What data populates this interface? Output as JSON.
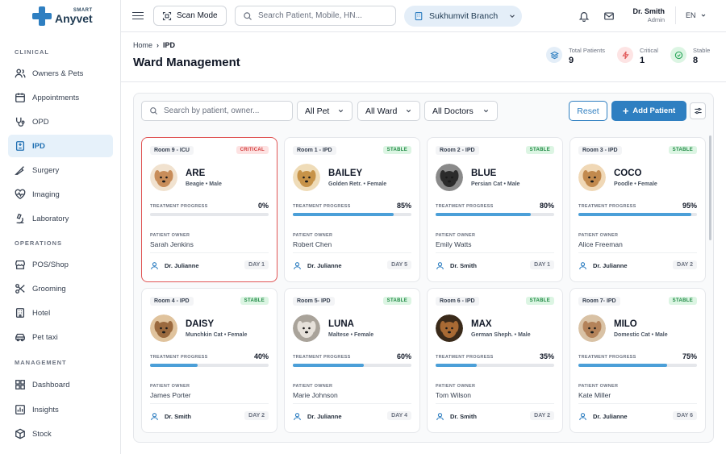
{
  "brand": {
    "smart": "SMART",
    "name": "Anyvet",
    "color": "#2f7fc1"
  },
  "sidebar": {
    "sections": [
      "CLINICAL",
      "OPERATIONS",
      "MANAGEMENT"
    ],
    "items": [
      {
        "label": "Owners & Pets",
        "icon": "users-icon"
      },
      {
        "label": "Appointments",
        "icon": "calendar-icon"
      },
      {
        "label": "OPD",
        "icon": "stethoscope-icon"
      },
      {
        "label": "IPD",
        "icon": "bed-icon",
        "active": true
      },
      {
        "label": "Surgery",
        "icon": "scalpel-icon"
      },
      {
        "label": "Imaging",
        "icon": "heart-pulse-icon"
      },
      {
        "label": "Laboratory",
        "icon": "microscope-icon"
      },
      {
        "label": "POS/Shop",
        "icon": "store-icon"
      },
      {
        "label": "Grooming",
        "icon": "scissors-icon"
      },
      {
        "label": "Hotel",
        "icon": "building-icon"
      },
      {
        "label": "Pet taxi",
        "icon": "car-icon"
      },
      {
        "label": "Dashboard",
        "icon": "grid-icon"
      },
      {
        "label": "Insights",
        "icon": "chart-icon"
      },
      {
        "label": "Stock",
        "icon": "box-icon"
      }
    ]
  },
  "topbar": {
    "scan_label": "Scan Mode",
    "search_placeholder": "Search Patient, Mobile, HN...",
    "branch": "Sukhumvit Branch",
    "user_name": "Dr. Smith",
    "user_role": "Admin",
    "language": "EN"
  },
  "header": {
    "breadcrumb": [
      "Home",
      "IPD"
    ],
    "title": "Ward Management",
    "stats": [
      {
        "label": "Total Patients",
        "value": "9",
        "color": "#2f7fc1"
      },
      {
        "label": "Critical",
        "value": "1",
        "color": "#e05555"
      },
      {
        "label": "Stable",
        "value": "8",
        "color": "#2aa55a"
      }
    ]
  },
  "filters": {
    "search_placeholder": "Search by patient, owner...",
    "pet": "All Pet",
    "ward": "All Ward",
    "doctors": "All Doctors",
    "reset": "Reset",
    "add": "Add Patient"
  },
  "labels": {
    "treatment_progress": "TREATMENT PROGRESS",
    "patient_owner": "PATIENT OWNER"
  },
  "patients": [
    {
      "room": "Room 9 - ICU",
      "status": "CRITICAL",
      "name": "ARE",
      "breed": "Beagie • Male",
      "progress": "0%",
      "owner": "Sarah Jenkins",
      "doctor": "Dr. Julianne",
      "day": "DAY 1"
    },
    {
      "room": "Room 1 - IPD",
      "status": "STABLE",
      "name": "BAILEY",
      "breed": "Golden Retr. • Female",
      "progress": "85%",
      "owner": "Robert Chen",
      "doctor": "Dr. Julianne",
      "day": "DAY 5"
    },
    {
      "room": "Room 2 - IPD",
      "status": "STABLE",
      "name": "BLUE",
      "breed": "Persian Cat • Male",
      "progress": "80%",
      "owner": "Emily Watts",
      "doctor": "Dr. Smith",
      "day": "DAY 1"
    },
    {
      "room": "Room 3 - IPD",
      "status": "STABLE",
      "name": "COCO",
      "breed": "Poodle • Female",
      "progress": "95%",
      "owner": "Alice Freeman",
      "doctor": "Dr. Julianne",
      "day": "DAY 2"
    },
    {
      "room": "Room 4 - IPD",
      "status": "STABLE",
      "name": "DAISY",
      "breed": "Munchkin Cat • Female",
      "progress": "40%",
      "owner": "James Porter",
      "doctor": "Dr. Smith",
      "day": "DAY 2"
    },
    {
      "room": "Room 5- IPD",
      "status": "STABLE",
      "name": "LUNA",
      "breed": "Maltese • Female",
      "progress": "60%",
      "owner": "Marie Johnson",
      "doctor": "Dr. Julianne",
      "day": "DAY 4"
    },
    {
      "room": "Room 6 - IPD",
      "status": "STABLE",
      "name": "MAX",
      "breed": "German Sheph. • Male",
      "progress": "35%",
      "owner": "Tom Wilson",
      "doctor": "Dr. Smith",
      "day": "DAY 2"
    },
    {
      "room": "Room 7- IPD",
      "status": "STABLE",
      "name": "MILO",
      "breed": "Domestic Cat • Male",
      "progress": "75%",
      "owner": "Kate Miller",
      "doctor": "Dr. Julianne",
      "day": "DAY 6"
    }
  ]
}
